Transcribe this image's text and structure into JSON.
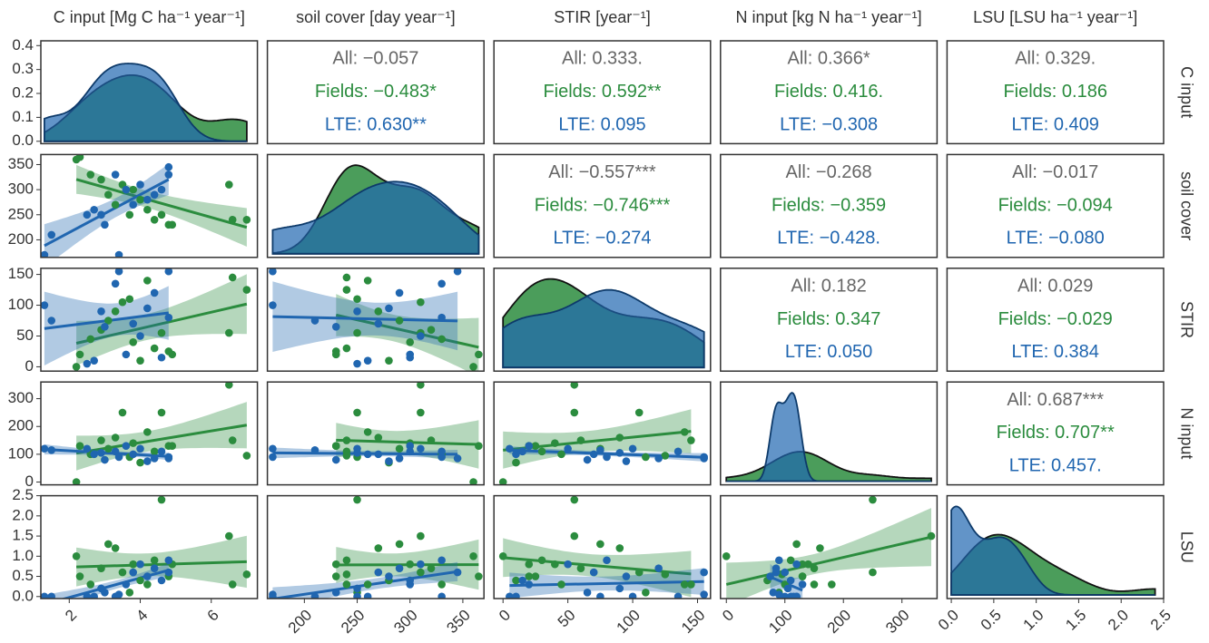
{
  "chart_data": {
    "type": "pairs",
    "columns": [
      "C input [Mg C ha⁻¹ year⁻¹]",
      "soil cover [day year⁻¹]",
      "STIR [year⁻¹]",
      "N input [kg N ha⁻¹ year⁻¹]",
      "LSU [LSU ha⁻¹ year⁻¹]"
    ],
    "rows": [
      "C input",
      "soil cover",
      "STIR",
      "N input",
      "LSU"
    ],
    "axes": [
      {
        "lim": [
          1.2,
          7.3
        ],
        "ticks": [
          2,
          4,
          6
        ]
      },
      {
        "lim": [
          165,
          370
        ],
        "ticks": [
          200,
          250,
          300,
          350
        ]
      },
      {
        "lim": [
          -7,
          160
        ],
        "ticks": [
          0,
          50,
          100,
          150
        ]
      },
      {
        "lim": [
          -10,
          360
        ],
        "ticks": [
          0,
          100,
          200,
          300
        ]
      },
      {
        "lim": [
          -0.05,
          2.5
        ],
        "ticks": [
          {
            "value": 0,
            "label": "0.0"
          },
          {
            "value": 0.5,
            "label": "0.5"
          },
          {
            "value": 1,
            "label": "1.0"
          },
          {
            "value": 1.5,
            "label": "1.5"
          },
          {
            "value": 2,
            "label": "2.0"
          },
          {
            "value": 2.5,
            "label": "2.5"
          }
        ]
      }
    ],
    "density_ylim": [
      -0.01,
      0.42
    ],
    "density_yticks": [
      {
        "value": 0,
        "label": "0.0"
      },
      0.1,
      0.2,
      0.3,
      0.4
    ],
    "groups": [
      {
        "color": "#2b8c3e",
        "values": [
          [
            2.3,
            2.6,
            2.9,
            3.1,
            3.3,
            3.5,
            3.7,
            3.8,
            4.0,
            4.2,
            4.4,
            4.6,
            4.8,
            4.9,
            6.5,
            6.6,
            7.0,
            2.2
          ],
          [
            365,
            330,
            320,
            290,
            270,
            310,
            250,
            300,
            280,
            260,
            240,
            250,
            230,
            230,
            310,
            240,
            240,
            360
          ],
          [
            20,
            45,
            60,
            75,
            90,
            105,
            110,
            40,
            10,
            140,
            30,
            55,
            25,
            20,
            55,
            145,
            125,
            0
          ],
          [
            130,
            100,
            150,
            120,
            160,
            250,
            90,
            140,
            70,
            180,
            110,
            250,
            130,
            130,
            350,
            150,
            95,
            0
          ],
          [
            0.5,
            0.3,
            0.7,
            1.3,
            1.2,
            0.6,
            0.1,
            0.8,
            0.4,
            0.3,
            0.9,
            2.4,
            0.5,
            0.8,
            1.5,
            0.3,
            0.55,
            1.0
          ]
        ]
      },
      {
        "color": "#2066b0",
        "values": [
          [
            1.3,
            1.5,
            2.5,
            2.7,
            3.0,
            3.3,
            3.4,
            3.6,
            3.8,
            4.0,
            4.2,
            4.4,
            4.6,
            4.8,
            4.8,
            2.9
          ],
          [
            170,
            210,
            250,
            260,
            230,
            330,
            170,
            300,
            270,
            310,
            280,
            290,
            300,
            330,
            345,
            250
          ],
          [
            100,
            75,
            5,
            10,
            65,
            135,
            155,
            20,
            70,
            50,
            95,
            120,
            15,
            80,
            155,
            90
          ],
          [
            120,
            115,
            120,
            100,
            80,
            110,
            90,
            130,
            100,
            120,
            75,
            85,
            110,
            90,
            85,
            105
          ],
          [
            0,
            0,
            0,
            0,
            0.1,
            0,
            0.05,
            0.3,
            0.6,
            0.8,
            0.5,
            0.7,
            0.4,
            0.9,
            0.6,
            0.2
          ]
        ]
      }
    ],
    "text_colors": [
      "#666666",
      "#2b8c3e",
      "#2066b0"
    ],
    "correlations": [
      [
        [
          "All: −0.057",
          "Fields: −0.483*",
          "LTE: 0.630**"
        ],
        [
          "All: 0.333.",
          "Fields: 0.592**",
          "LTE: 0.095"
        ],
        [
          "All: 0.366*",
          "Fields: 0.416.",
          "LTE: −0.308"
        ],
        [
          "All: 0.329.",
          "Fields: 0.186",
          "LTE: 0.409"
        ]
      ],
      [
        [
          "All: −0.557***",
          "Fields: −0.746***",
          "LTE: −0.274"
        ],
        [
          "All: −0.268",
          "Fields: −0.359",
          "LTE: −0.428."
        ],
        [
          "All: −0.017",
          "Fields: −0.094",
          "LTE: −0.080"
        ]
      ],
      [
        [
          "All: 0.182",
          "Fields: 0.347",
          "LTE: 0.050"
        ],
        [
          "All: 0.029",
          "Fields: −0.029",
          "LTE: 0.384"
        ]
      ],
      [
        [
          "All: 0.687***",
          "Fields: 0.707**",
          "LTE: 0.457."
        ]
      ]
    ]
  }
}
